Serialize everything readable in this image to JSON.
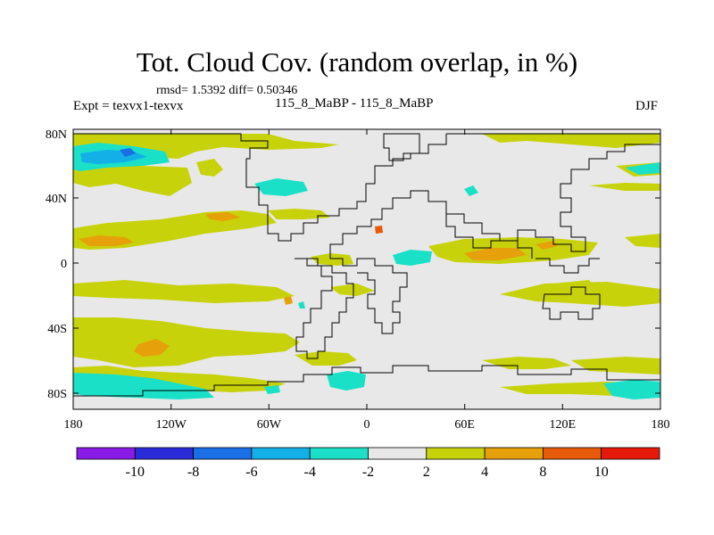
{
  "figure": {
    "title": "Tot. Cloud Cov. (random overlap, in %)",
    "stats": "rmsd= 1.5392  diff= 0.50346",
    "expt_label": "Expt = texvx1-texvx",
    "center_label": "115_8_MaBP - 115_8_MaBP",
    "season": "DJF"
  },
  "axes": {
    "lon_ticks": [
      "180",
      "120W",
      "60W",
      "0",
      "60E",
      "120E",
      "180"
    ],
    "lat_ticks": [
      "80N",
      "40N",
      "0",
      "40S",
      "80S"
    ]
  },
  "colorbar": {
    "colors": [
      "#8a1ae6",
      "#2a2ad8",
      "#1a6ee6",
      "#12b0e6",
      "#1ae0c8",
      "#e8e8e8",
      "#c8d20a",
      "#e6a00a",
      "#e65a0a",
      "#e61a0a"
    ],
    "labels": [
      "-10",
      "-8",
      "-6",
      "-4",
      "-2",
      "2",
      "4",
      "8",
      "10"
    ]
  },
  "colors": {
    "neutral": "#e8e8e8",
    "plus_2_4": "#c8d20a",
    "plus_4_8": "#e6a00a",
    "plus_8_10": "#e65a0a",
    "minus_2_4": "#1ae0c8",
    "minus_4_6": "#12b0e6",
    "minus_6_8": "#1a6ee6"
  }
}
